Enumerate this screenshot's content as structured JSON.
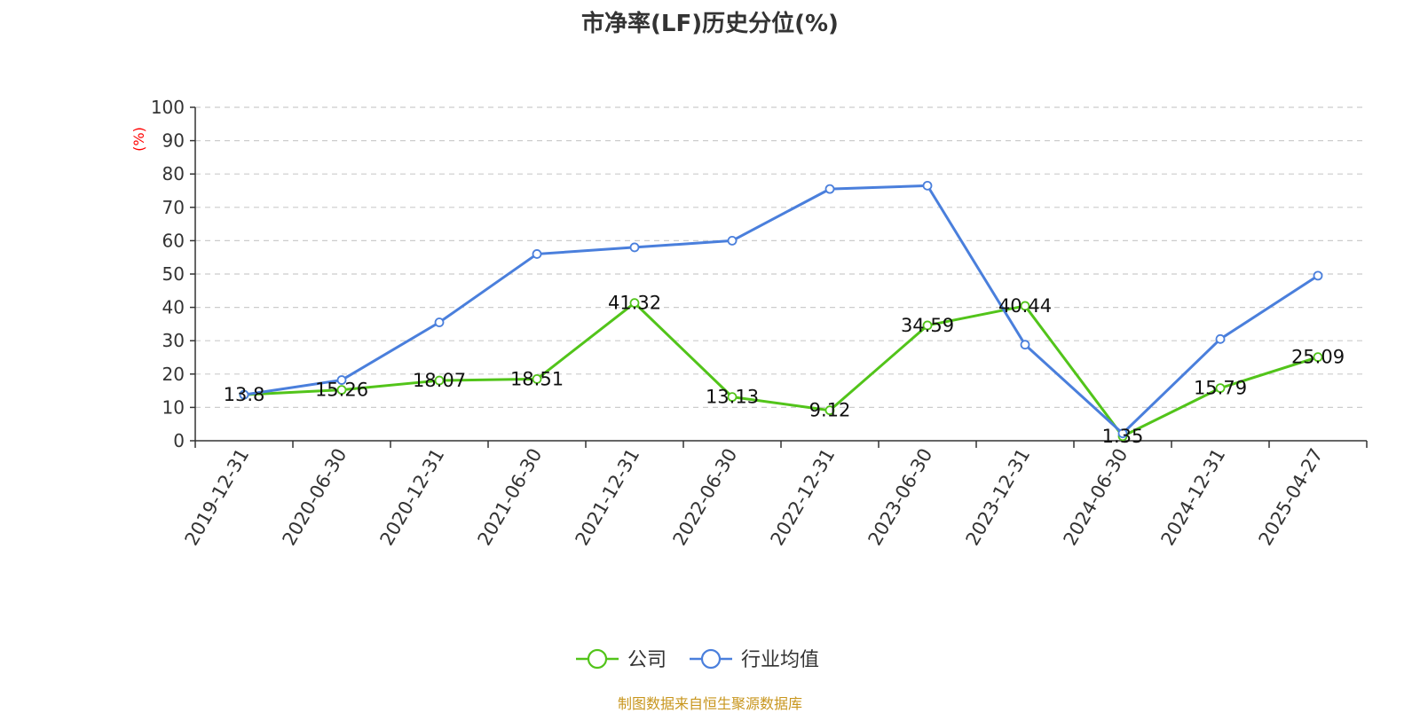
{
  "chart_data": {
    "type": "line",
    "title": "市净率(LF)历史分位(%)",
    "ylabel": "(%)",
    "ylim": [
      0,
      100
    ],
    "yticks": [
      0,
      10,
      20,
      30,
      40,
      50,
      60,
      70,
      80,
      90,
      100
    ],
    "grid": true,
    "legend_position": "bottom",
    "categories": [
      "2019-12-31",
      "2020-06-30",
      "2020-12-31",
      "2021-06-30",
      "2021-12-31",
      "2022-06-30",
      "2022-12-31",
      "2023-06-30",
      "2023-12-31",
      "2024-06-30",
      "2024-12-31",
      "2025-04-27"
    ],
    "series": [
      {
        "name": "公司",
        "color": "#52c41a",
        "show_labels": true,
        "values": [
          13.8,
          15.26,
          18.07,
          18.51,
          41.32,
          13.13,
          9.12,
          34.59,
          40.44,
          1.35,
          15.79,
          25.09
        ]
      },
      {
        "name": "行业均值",
        "color": "#4a7fdc",
        "show_labels": false,
        "values": [
          13.8,
          18.2,
          35.5,
          56.0,
          58.0,
          60.0,
          75.5,
          76.5,
          28.8,
          2.2,
          30.5,
          49.5
        ]
      }
    ]
  },
  "footer": {
    "source": "制图数据来自恒生聚源数据库"
  }
}
